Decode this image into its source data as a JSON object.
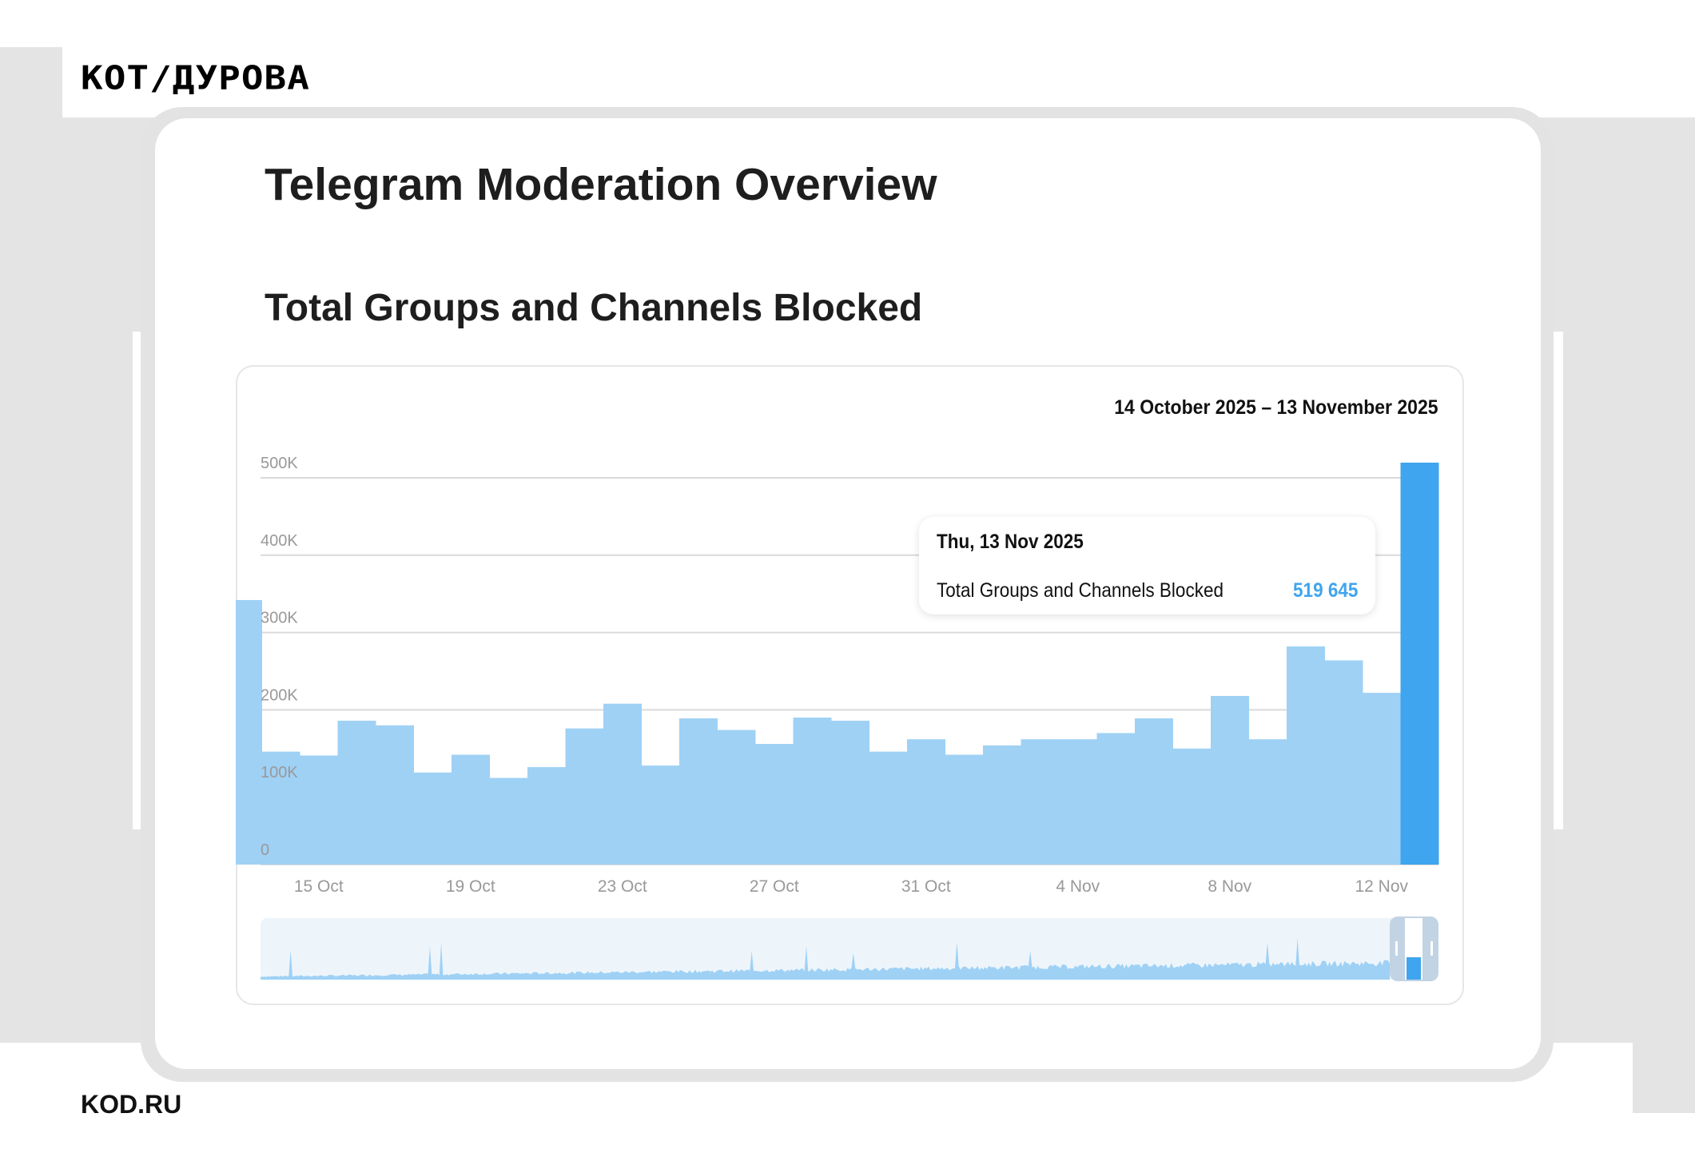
{
  "brand": {
    "logo": "КОТ/ДУРОВА",
    "footer": "KOD.RU"
  },
  "page": {
    "title": "Telegram Moderation Overview",
    "section_title": "Total Groups and Channels Blocked"
  },
  "colors": {
    "bar": "#9fd1f5",
    "bar_highlight": "#3fa5ee",
    "grid": "#e6e6e6",
    "tooltip_value": "#3fa5ee"
  },
  "chart_data": {
    "type": "bar",
    "date_range": "14 October 2025 – 13 November 2025",
    "categories": [
      "13 Oct",
      "14 Oct",
      "15 Oct",
      "16 Oct",
      "17 Oct",
      "18 Oct",
      "19 Oct",
      "20 Oct",
      "21 Oct",
      "22 Oct",
      "23 Oct",
      "24 Oct",
      "25 Oct",
      "26 Oct",
      "27 Oct",
      "28 Oct",
      "29 Oct",
      "30 Oct",
      "31 Oct",
      "1 Nov",
      "2 Nov",
      "3 Nov",
      "4 Nov",
      "5 Nov",
      "6 Nov",
      "7 Nov",
      "8 Nov",
      "9 Nov",
      "10 Nov",
      "11 Nov",
      "12 Nov",
      "13 Nov"
    ],
    "series": [
      {
        "name": "Total Groups and Channels Blocked",
        "values": [
          342000,
          146000,
          141000,
          186000,
          180000,
          119000,
          142000,
          112000,
          126000,
          176000,
          208000,
          128000,
          189000,
          174000,
          156000,
          190000,
          186000,
          146000,
          162000,
          142000,
          154000,
          162000,
          162000,
          170000,
          189000,
          150000,
          218000,
          162000,
          282000,
          264000,
          222000,
          519645
        ]
      }
    ],
    "highlighted_index": 31,
    "ylim": [
      0,
      520000
    ],
    "yticks": [
      0,
      100000,
      200000,
      300000,
      400000,
      500000
    ],
    "ytick_labels": [
      "0",
      "100K",
      "200K",
      "300K",
      "400K",
      "500K"
    ],
    "xtick_labels": [
      "15 Oct",
      "19 Oct",
      "23 Oct",
      "27 Oct",
      "31 Oct",
      "4 Nov",
      "8 Nov",
      "12 Nov"
    ],
    "grid": true,
    "legend": "none",
    "navigator": true
  },
  "tooltip": {
    "date": "Thu, 13 Nov 2025",
    "label": "Total Groups and Channels Blocked",
    "value": "519 645"
  }
}
